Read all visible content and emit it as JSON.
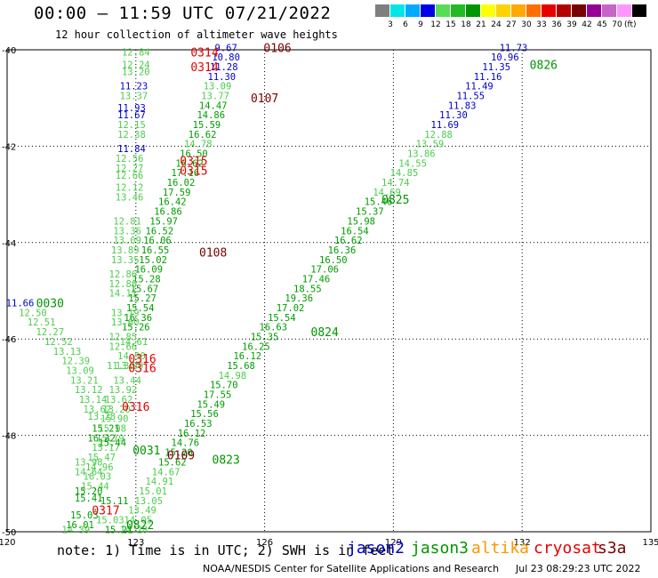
{
  "title": "00:00 – 11:59 UTC 07/21/2022",
  "subtitle": "12 hour collection of altimeter wave heights",
  "note": "note:  1) Time is in UTC; 2) SWH is in feet",
  "credit": "NOAA/NESDIS Center for Satellite Applications and Research",
  "timestamp": "Jul 23 08:29:23 UTC 2022",
  "satellites": [
    {
      "name": "jason2",
      "color": "#0000c8"
    },
    {
      "name": "jason3",
      "color": "#009600"
    },
    {
      "name": "altika",
      "color": "#ff9600"
    },
    {
      "name": "cryosat",
      "color": "#e60000"
    },
    {
      "name": "s3a",
      "color": "#7a0000"
    }
  ],
  "colorbar": {
    "colors": [
      "#7f7f7f",
      "#00e6e6",
      "#00aaff",
      "#0000e6",
      "#55dd55",
      "#22bb22",
      "#009600",
      "#ffff00",
      "#ffd200",
      "#ffaa00",
      "#ff6e00",
      "#e60000",
      "#b40000",
      "#780000",
      "#960096",
      "#c864c8",
      "#ff96ff",
      "#000000"
    ],
    "labels": [
      "3",
      "6",
      "9",
      "12",
      "15",
      "18",
      "21",
      "24",
      "27",
      "30",
      "33",
      "36",
      "39",
      "42",
      "45",
      "70"
    ],
    "unit": "(ft)"
  },
  "chart_data": {
    "type": "scatter",
    "title": "00:00 – 11:59 UTC 07/21/2022",
    "subtitle": "12 hour collection of altimeter wave heights",
    "xlim": [
      120,
      135
    ],
    "ylim": [
      -50,
      -40
    ],
    "xticks": [
      "120",
      "123",
      "126",
      "129",
      "132",
      "135"
    ],
    "yticks": [
      "-40",
      "-42",
      "-44",
      "-46",
      "-48",
      "-50"
    ],
    "grid": true,
    "points": [
      {
        "x": 131.8,
        "y": -39.95,
        "v": "11.73",
        "c": "blue"
      },
      {
        "x": 131.6,
        "y": -40.15,
        "v": "10.96",
        "c": "blue"
      },
      {
        "x": 131.4,
        "y": -40.35,
        "v": "11.35",
        "c": "blue"
      },
      {
        "x": 131.2,
        "y": -40.55,
        "v": "11.16",
        "c": "blue"
      },
      {
        "x": 131.0,
        "y": -40.75,
        "v": "11.49",
        "c": "blue"
      },
      {
        "x": 130.8,
        "y": -40.95,
        "v": "11.55",
        "c": "blue"
      },
      {
        "x": 130.6,
        "y": -41.15,
        "v": "11.83",
        "c": "blue"
      },
      {
        "x": 130.4,
        "y": -41.35,
        "v": "11.30",
        "c": "blue"
      },
      {
        "x": 130.2,
        "y": -41.55,
        "v": "11.69",
        "c": "blue"
      },
      {
        "x": 130.05,
        "y": -41.75,
        "v": "12.88",
        "c": "lg"
      },
      {
        "x": 129.85,
        "y": -41.95,
        "v": "13.59",
        "c": "lg"
      },
      {
        "x": 129.65,
        "y": -42.15,
        "v": "13.86",
        "c": "lg"
      },
      {
        "x": 129.45,
        "y": -42.35,
        "v": "14.55",
        "c": "lg"
      },
      {
        "x": 129.25,
        "y": -42.55,
        "v": "14.85",
        "c": "lg"
      },
      {
        "x": 129.05,
        "y": -42.75,
        "v": "14.74",
        "c": "lg"
      },
      {
        "x": 128.85,
        "y": -42.95,
        "v": "14.69",
        "c": "lg"
      },
      {
        "x": 128.65,
        "y": -43.15,
        "v": "15.46",
        "c": "g"
      },
      {
        "x": 128.45,
        "y": -43.35,
        "v": "15.37",
        "c": "g"
      },
      {
        "x": 128.25,
        "y": -43.55,
        "v": "15.98",
        "c": "g"
      },
      {
        "x": 128.1,
        "y": -43.75,
        "v": "16.54",
        "c": "g"
      },
      {
        "x": 127.95,
        "y": -43.95,
        "v": "16.62",
        "c": "g"
      },
      {
        "x": 127.8,
        "y": -44.15,
        "v": "16.36",
        "c": "g"
      },
      {
        "x": 127.6,
        "y": -44.35,
        "v": "16.50",
        "c": "g"
      },
      {
        "x": 127.4,
        "y": -44.55,
        "v": "17.06",
        "c": "g"
      },
      {
        "x": 127.2,
        "y": -44.75,
        "v": "17.46",
        "c": "g"
      },
      {
        "x": 127.0,
        "y": -44.95,
        "v": "18.55",
        "c": "g"
      },
      {
        "x": 126.8,
        "y": -45.15,
        "v": "19.36",
        "c": "g"
      },
      {
        "x": 126.6,
        "y": -45.35,
        "v": "17.02",
        "c": "g"
      },
      {
        "x": 126.4,
        "y": -45.55,
        "v": "15.54",
        "c": "g"
      },
      {
        "x": 126.2,
        "y": -45.75,
        "v": "16.63",
        "c": "g"
      },
      {
        "x": 126.0,
        "y": -45.95,
        "v": "15.35",
        "c": "g"
      },
      {
        "x": 125.8,
        "y": -46.15,
        "v": "16.25",
        "c": "g"
      },
      {
        "x": 125.6,
        "y": -46.35,
        "v": "16.12",
        "c": "g"
      },
      {
        "x": 125.45,
        "y": -46.55,
        "v": "15.68",
        "c": "g"
      },
      {
        "x": 125.25,
        "y": -46.75,
        "v": "14.98",
        "c": "lg"
      },
      {
        "x": 125.05,
        "y": -46.95,
        "v": "15.70",
        "c": "g"
      },
      {
        "x": 124.9,
        "y": -47.15,
        "v": "17.55",
        "c": "g"
      },
      {
        "x": 124.75,
        "y": -47.35,
        "v": "15.49",
        "c": "g"
      },
      {
        "x": 124.6,
        "y": -47.55,
        "v": "15.56",
        "c": "g"
      },
      {
        "x": 124.45,
        "y": -47.75,
        "v": "16.53",
        "c": "g"
      },
      {
        "x": 124.3,
        "y": -47.95,
        "v": "16.12",
        "c": "g"
      },
      {
        "x": 124.15,
        "y": -48.15,
        "v": "14.76",
        "c": "g"
      },
      {
        "x": 124.0,
        "y": -48.35,
        "v": "15.20",
        "c": "g"
      },
      {
        "x": 123.85,
        "y": -48.55,
        "v": "15.62",
        "c": "g"
      },
      {
        "x": 123.7,
        "y": -48.75,
        "v": "14.67",
        "c": "lg"
      },
      {
        "x": 123.55,
        "y": -48.95,
        "v": "14.91",
        "c": "lg"
      },
      {
        "x": 123.4,
        "y": -49.15,
        "v": "15.01",
        "c": "lg"
      },
      {
        "x": 123.3,
        "y": -49.35,
        "v": "13.05",
        "c": "lg"
      },
      {
        "x": 123.15,
        "y": -49.55,
        "v": "13.49",
        "c": "lg"
      },
      {
        "x": 123.05,
        "y": -49.75,
        "v": "14.05",
        "c": "lg"
      },
      {
        "x": 122.95,
        "y": -49.95,
        "v": "14.28",
        "c": "lg"
      },
      {
        "x": 125.1,
        "y": -39.95,
        "v": "9.67",
        "c": "blue"
      },
      {
        "x": 125.1,
        "y": -40.15,
        "v": "10.80",
        "c": "blue"
      },
      {
        "x": 125.05,
        "y": -40.35,
        "v": "11.28",
        "c": "blue"
      },
      {
        "x": 125.0,
        "y": -40.55,
        "v": "11.30",
        "c": "blue"
      },
      {
        "x": 124.9,
        "y": -40.75,
        "v": "13.09",
        "c": "lg"
      },
      {
        "x": 124.85,
        "y": -40.95,
        "v": "13.77",
        "c": "lg"
      },
      {
        "x": 124.8,
        "y": -41.15,
        "v": "14.47",
        "c": "g"
      },
      {
        "x": 124.75,
        "y": -41.35,
        "v": "14.86",
        "c": "g"
      },
      {
        "x": 124.65,
        "y": -41.55,
        "v": "15.59",
        "c": "g"
      },
      {
        "x": 124.55,
        "y": -41.75,
        "v": "16.62",
        "c": "g"
      },
      {
        "x": 124.45,
        "y": -41.95,
        "v": "14.78",
        "c": "lg"
      },
      {
        "x": 124.35,
        "y": -42.15,
        "v": "16.50",
        "c": "g"
      },
      {
        "x": 124.25,
        "y": -42.35,
        "v": "16.62",
        "c": "g"
      },
      {
        "x": 124.15,
        "y": -42.55,
        "v": "17.16",
        "c": "g"
      },
      {
        "x": 124.05,
        "y": -42.75,
        "v": "16.02",
        "c": "g"
      },
      {
        "x": 123.95,
        "y": -42.95,
        "v": "17.59",
        "c": "g"
      },
      {
        "x": 123.85,
        "y": -43.15,
        "v": "16.42",
        "c": "g"
      },
      {
        "x": 123.75,
        "y": -43.35,
        "v": "16.86",
        "c": "g"
      },
      {
        "x": 123.65,
        "y": -43.55,
        "v": "15.97",
        "c": "g"
      },
      {
        "x": 123.55,
        "y": -43.75,
        "v": "16.52",
        "c": "g"
      },
      {
        "x": 123.5,
        "y": -43.95,
        "v": "16.06",
        "c": "g"
      },
      {
        "x": 123.45,
        "y": -44.15,
        "v": "16.55",
        "c": "g"
      },
      {
        "x": 123.4,
        "y": -44.35,
        "v": "15.02",
        "c": "g"
      },
      {
        "x": 123.3,
        "y": -44.55,
        "v": "16.09",
        "c": "g"
      },
      {
        "x": 123.25,
        "y": -44.75,
        "v": "15.28",
        "c": "g"
      },
      {
        "x": 123.2,
        "y": -44.95,
        "v": "15.67",
        "c": "g"
      },
      {
        "x": 123.15,
        "y": -45.15,
        "v": "15.27",
        "c": "g"
      },
      {
        "x": 123.1,
        "y": -45.35,
        "v": "15.54",
        "c": "g"
      },
      {
        "x": 123.05,
        "y": -45.55,
        "v": "16.36",
        "c": "g"
      },
      {
        "x": 123.0,
        "y": -45.75,
        "v": "15.26",
        "c": "g"
      },
      {
        "x": 122.95,
        "y": -46.05,
        "v": "14.61",
        "c": "lg"
      },
      {
        "x": 122.9,
        "y": -46.35,
        "v": "14.90",
        "c": "lg"
      },
      {
        "x": 122.85,
        "y": -46.55,
        "v": "13.80",
        "c": "lg"
      },
      {
        "x": 122.8,
        "y": -46.85,
        "v": "13.44",
        "c": "lg"
      },
      {
        "x": 122.7,
        "y": -47.05,
        "v": "13.92",
        "c": "lg"
      },
      {
        "x": 122.6,
        "y": -47.25,
        "v": "13.62",
        "c": "lg"
      },
      {
        "x": 122.55,
        "y": -47.45,
        "v": "13.20",
        "c": "lg"
      },
      {
        "x": 122.5,
        "y": -47.65,
        "v": "15.90",
        "c": "lg"
      },
      {
        "x": 122.45,
        "y": -47.85,
        "v": "15.98",
        "c": "lg"
      },
      {
        "x": 122.4,
        "y": -48.05,
        "v": "15.19",
        "c": "lg"
      },
      {
        "x": 122.3,
        "y": -48.25,
        "v": "15.17",
        "c": "lg"
      },
      {
        "x": 122.2,
        "y": -48.45,
        "v": "15.47",
        "c": "lg"
      },
      {
        "x": 122.15,
        "y": -48.65,
        "v": "14.96",
        "c": "lg"
      },
      {
        "x": 122.1,
        "y": -48.85,
        "v": "16.03",
        "c": "lg"
      },
      {
        "x": 122.05,
        "y": -49.05,
        "v": "15.44",
        "c": "lg"
      },
      {
        "x": 123.0,
        "y": -40.05,
        "v": "12.84",
        "c": "lg"
      },
      {
        "x": 123.0,
        "y": -40.3,
        "v": "12.24",
        "c": "lg"
      },
      {
        "x": 123.0,
        "y": -40.45,
        "v": "13.20",
        "c": "lg"
      },
      {
        "x": 122.95,
        "y": -40.75,
        "v": "11.23",
        "c": "blue"
      },
      {
        "x": 122.95,
        "y": -40.95,
        "v": "13.37",
        "c": "lg"
      },
      {
        "x": 122.9,
        "y": -41.2,
        "v": "11.93",
        "c": "blue"
      },
      {
        "x": 122.9,
        "y": -41.35,
        "v": "11.67",
        "c": "blue"
      },
      {
        "x": 122.9,
        "y": -41.55,
        "v": "12.15",
        "c": "lg"
      },
      {
        "x": 122.9,
        "y": -41.75,
        "v": "12.38",
        "c": "lg"
      },
      {
        "x": 122.9,
        "y": -42.05,
        "v": "11.84",
        "c": "blue"
      },
      {
        "x": 122.85,
        "y": -42.25,
        "v": "12.56",
        "c": "lg"
      },
      {
        "x": 122.85,
        "y": -42.45,
        "v": "12.27",
        "c": "lg"
      },
      {
        "x": 122.85,
        "y": -42.6,
        "v": "12.66",
        "c": "lg"
      },
      {
        "x": 122.85,
        "y": -42.85,
        "v": "12.12",
        "c": "lg"
      },
      {
        "x": 122.85,
        "y": -43.05,
        "v": "13.46",
        "c": "lg"
      },
      {
        "x": 122.8,
        "y": -43.55,
        "v": "12.81",
        "c": "lg"
      },
      {
        "x": 122.8,
        "y": -43.75,
        "v": "13.36",
        "c": "lg"
      },
      {
        "x": 122.8,
        "y": -43.95,
        "v": "13.09",
        "c": "lg"
      },
      {
        "x": 122.75,
        "y": -44.15,
        "v": "13.89",
        "c": "lg"
      },
      {
        "x": 122.75,
        "y": -44.35,
        "v": "13.35",
        "c": "lg"
      },
      {
        "x": 122.7,
        "y": -44.65,
        "v": "12.86",
        "c": "lg"
      },
      {
        "x": 122.7,
        "y": -44.85,
        "v": "12.80",
        "c": "lg"
      },
      {
        "x": 122.7,
        "y": -45.05,
        "v": "14.11",
        "c": "lg"
      },
      {
        "x": 122.75,
        "y": -45.45,
        "v": "13.19",
        "c": "lg"
      },
      {
        "x": 122.75,
        "y": -45.65,
        "v": "13.60",
        "c": "lg"
      },
      {
        "x": 122.7,
        "y": -45.95,
        "v": "12.85",
        "c": "lg"
      },
      {
        "x": 122.7,
        "y": -46.15,
        "v": "12.66",
        "c": "lg"
      },
      {
        "x": 122.65,
        "y": -46.55,
        "v": "11.30",
        "c": "lg"
      },
      {
        "x": 120.3,
        "y": -45.25,
        "v": "11.66",
        "c": "blue"
      },
      {
        "x": 120.6,
        "y": -45.45,
        "v": "12.50",
        "c": "lg"
      },
      {
        "x": 120.8,
        "y": -45.65,
        "v": "12.51",
        "c": "lg"
      },
      {
        "x": 121.0,
        "y": -45.85,
        "v": "12.27",
        "c": "lg"
      },
      {
        "x": 121.2,
        "y": -46.05,
        "v": "12.52",
        "c": "lg"
      },
      {
        "x": 121.4,
        "y": -46.25,
        "v": "13.13",
        "c": "lg"
      },
      {
        "x": 121.6,
        "y": -46.45,
        "v": "12.39",
        "c": "lg"
      },
      {
        "x": 121.7,
        "y": -46.65,
        "v": "13.09",
        "c": "lg"
      },
      {
        "x": 121.8,
        "y": -46.85,
        "v": "13.21",
        "c": "lg"
      },
      {
        "x": 121.9,
        "y": -47.05,
        "v": "13.12",
        "c": "lg"
      },
      {
        "x": 122.0,
        "y": -47.25,
        "v": "13.14",
        "c": "lg"
      },
      {
        "x": 122.1,
        "y": -47.45,
        "v": "13.62",
        "c": "lg"
      },
      {
        "x": 122.2,
        "y": -47.6,
        "v": "13.28",
        "c": "lg"
      },
      {
        "x": 122.3,
        "y": -47.85,
        "v": "15.21",
        "c": "g"
      },
      {
        "x": 122.2,
        "y": -48.05,
        "v": "16.32",
        "c": "g"
      },
      {
        "x": 122.45,
        "y": -48.15,
        "v": "15.44",
        "c": "g"
      },
      {
        "x": 121.9,
        "y": -48.55,
        "v": "13.98",
        "c": "lg"
      },
      {
        "x": 121.9,
        "y": -48.75,
        "v": "14.64",
        "c": "lg"
      },
      {
        "x": 121.9,
        "y": -49.15,
        "v": "15.20",
        "c": "g"
      },
      {
        "x": 121.9,
        "y": -49.3,
        "v": "15.41",
        "c": "g"
      },
      {
        "x": 122.5,
        "y": -49.35,
        "v": "15.11",
        "c": "g"
      },
      {
        "x": 121.8,
        "y": -49.65,
        "v": "15.03",
        "c": "g"
      },
      {
        "x": 121.7,
        "y": -49.85,
        "v": "16.01",
        "c": "g"
      },
      {
        "x": 121.6,
        "y": -49.95,
        "v": "14.39",
        "c": "lg"
      },
      {
        "x": 122.6,
        "y": -49.95,
        "v": "15.21",
        "c": "g"
      },
      {
        "x": 122.4,
        "y": -49.75,
        "v": "15.03",
        "c": "lg"
      }
    ],
    "labels": [
      {
        "x": 126.3,
        "y": -39.95,
        "v": "0106",
        "c": "s3a"
      },
      {
        "x": 124.6,
        "y": -40.05,
        "v": "0314",
        "c": "cryosat"
      },
      {
        "x": 124.6,
        "y": -40.35,
        "v": "0314",
        "c": "cryosat"
      },
      {
        "x": 132.5,
        "y": -40.3,
        "v": "0826",
        "c": "jason3"
      },
      {
        "x": 126.0,
        "y": -41.0,
        "v": "0107",
        "c": "s3a"
      },
      {
        "x": 124.35,
        "y": -42.3,
        "v": "0315",
        "c": "cryosat"
      },
      {
        "x": 124.35,
        "y": -42.5,
        "v": "0315",
        "c": "cryosat"
      },
      {
        "x": 129.05,
        "y": -43.1,
        "v": "0825",
        "c": "jason3"
      },
      {
        "x": 124.8,
        "y": -44.2,
        "v": "0108",
        "c": "s3a"
      },
      {
        "x": 121.0,
        "y": -45.25,
        "v": "0030",
        "c": "jason3"
      },
      {
        "x": 127.4,
        "y": -45.85,
        "v": "0824",
        "c": "jason3"
      },
      {
        "x": 123.15,
        "y": -46.4,
        "v": "0316",
        "c": "cryosat"
      },
      {
        "x": 123.15,
        "y": -46.6,
        "v": "0316",
        "c": "cryosat"
      },
      {
        "x": 123.0,
        "y": -47.4,
        "v": "0316",
        "c": "cryosat"
      },
      {
        "x": 123.25,
        "y": -48.3,
        "v": "0031",
        "c": "jason3"
      },
      {
        "x": 124.05,
        "y": -48.4,
        "v": "0109",
        "c": "s3a"
      },
      {
        "x": 125.1,
        "y": -48.5,
        "v": "0823",
        "c": "jason3"
      },
      {
        "x": 122.3,
        "y": -49.55,
        "v": "0317",
        "c": "cryosat"
      },
      {
        "x": 123.1,
        "y": -49.85,
        "v": "0822",
        "c": "jason3"
      }
    ]
  }
}
